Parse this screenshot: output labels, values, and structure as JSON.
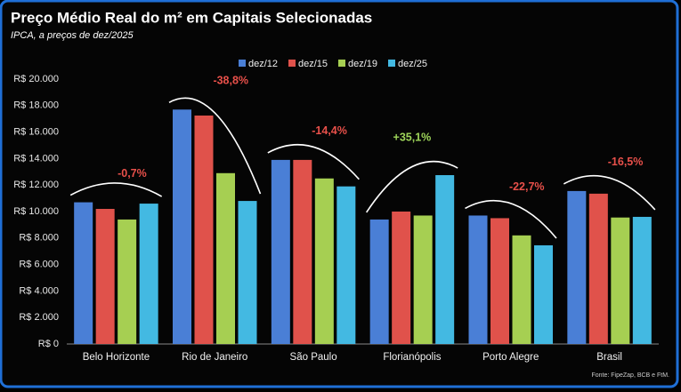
{
  "chart_data": {
    "type": "bar",
    "title": "Preço Médio Real do m² em Capitais Selecionadas",
    "subtitle": "IPCA, a preços de dez/2025",
    "source": "Fonte: FipeZap, BCB e FtM.",
    "categories": [
      "Belo Horizonte",
      "Rio de Janeiro",
      "São Paulo",
      "Florianópolis",
      "Porto Alegre",
      "Brasil"
    ],
    "series": [
      {
        "name": "dez/12",
        "color": "#4a7fd6",
        "values": [
          10700,
          17700,
          13900,
          9400,
          9700,
          11550
        ]
      },
      {
        "name": "dez/15",
        "color": "#e0524b",
        "values": [
          10200,
          17250,
          13900,
          10000,
          9500,
          11350
        ]
      },
      {
        "name": "dez/19",
        "color": "#a6cf52",
        "values": [
          9400,
          12900,
          12500,
          9700,
          8200,
          9550
        ]
      },
      {
        "name": "dez/25",
        "color": "#43b9e2",
        "values": [
          10600,
          10800,
          11900,
          12750,
          7450,
          9600
        ]
      }
    ],
    "annotations": [
      "-0,7%",
      "-38,8%",
      "-14,4%",
      "+35,1%",
      "-22,7%",
      "-16,5%"
    ],
    "ylim": [
      0,
      20000
    ],
    "yticks": [
      {
        "value": 0,
        "label": "R$ 0"
      },
      {
        "value": 2000,
        "label": "R$ 2.000"
      },
      {
        "value": 4000,
        "label": "R$ 4.000"
      },
      {
        "value": 6000,
        "label": "R$ 6.000"
      },
      {
        "value": 8000,
        "label": "R$ 8.000"
      },
      {
        "value": 10000,
        "label": "R$ 10.000"
      },
      {
        "value": 12000,
        "label": "R$ 12.000"
      },
      {
        "value": 14000,
        "label": "R$ 14.000"
      },
      {
        "value": 16000,
        "label": "R$ 16.000"
      },
      {
        "value": 18000,
        "label": "R$ 18.000"
      },
      {
        "value": 20000,
        "label": "R$ 20.000"
      }
    ],
    "grid": false
  }
}
